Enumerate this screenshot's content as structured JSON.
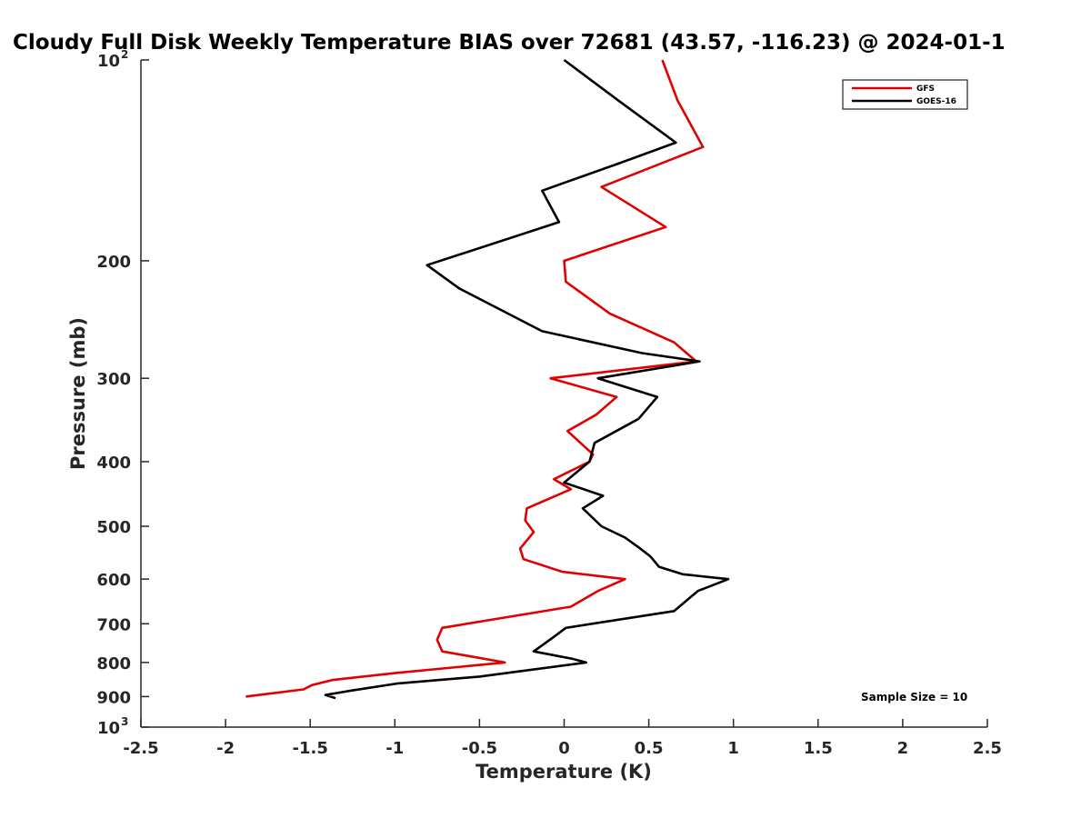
{
  "chart_data": {
    "type": "line",
    "title": "Cloudy Full Disk Weekly Temperature BIAS over 72681 (43.57, -116.23) @ 2024-01-1",
    "xlabel": "Temperature (K)",
    "ylabel": "Pressure (mb)",
    "xlim": [
      -2.5,
      2.5
    ],
    "ylim": [
      100,
      1000
    ],
    "y_scale": "log",
    "y_reversed": true,
    "grid": false,
    "legend_position": "top-right",
    "x_ticks": [
      "-2.5",
      "-2",
      "-1.5",
      "-1",
      "-0.5",
      "0",
      "0.5",
      "1",
      "1.5",
      "2",
      "2.5"
    ],
    "y_ticks": [
      {
        "value": 100,
        "base": "10",
        "exp": "2"
      },
      {
        "value": 200,
        "label": "200"
      },
      {
        "value": 300,
        "label": "300"
      },
      {
        "value": 400,
        "label": "400"
      },
      {
        "value": 500,
        "label": "500"
      },
      {
        "value": 600,
        "label": "600"
      },
      {
        "value": 700,
        "label": "700"
      },
      {
        "value": 800,
        "label": "800"
      },
      {
        "value": 900,
        "label": "900"
      },
      {
        "value": 1000,
        "base": "10",
        "exp": "3"
      }
    ],
    "annotation": "Sample Size = 10",
    "series": [
      {
        "name": "GFS",
        "color": "#e00000",
        "points": [
          [
            0.58,
            100
          ],
          [
            0.67,
            115
          ],
          [
            0.82,
            135
          ],
          [
            0.22,
            155
          ],
          [
            0.6,
            178
          ],
          [
            0.0,
            200
          ],
          [
            0.01,
            215
          ],
          [
            0.27,
            240
          ],
          [
            0.65,
            265
          ],
          [
            0.78,
            283
          ],
          [
            -0.08,
            300
          ],
          [
            0.31,
            320
          ],
          [
            0.19,
            340
          ],
          [
            0.02,
            360
          ],
          [
            0.17,
            390
          ],
          [
            0.15,
            400
          ],
          [
            -0.06,
            425
          ],
          [
            0.04,
            440
          ],
          [
            -0.22,
            470
          ],
          [
            -0.23,
            490
          ],
          [
            -0.18,
            510
          ],
          [
            -0.26,
            540
          ],
          [
            -0.24,
            560
          ],
          [
            -0.01,
            585
          ],
          [
            0.36,
            600
          ],
          [
            0.2,
            625
          ],
          [
            0.04,
            660
          ],
          [
            -0.72,
            710
          ],
          [
            -0.75,
            740
          ],
          [
            -0.72,
            770
          ],
          [
            -0.47,
            790
          ],
          [
            -0.35,
            800
          ],
          [
            -1.0,
            830
          ],
          [
            -1.37,
            850
          ],
          [
            -1.49,
            865
          ],
          [
            -1.54,
            878
          ],
          [
            -1.88,
            900
          ]
        ]
      },
      {
        "name": "GOES-16",
        "color": "#000000",
        "points": [
          [
            0.0,
            100
          ],
          [
            0.32,
            115
          ],
          [
            0.66,
            133
          ],
          [
            0.32,
            143
          ],
          [
            -0.13,
            157
          ],
          [
            -0.03,
            175
          ],
          [
            -0.81,
            203
          ],
          [
            -0.62,
            220
          ],
          [
            -0.13,
            255
          ],
          [
            0.46,
            275
          ],
          [
            0.8,
            283
          ],
          [
            0.2,
            300
          ],
          [
            0.55,
            320
          ],
          [
            0.44,
            345
          ],
          [
            0.18,
            375
          ],
          [
            0.15,
            400
          ],
          [
            0.0,
            430
          ],
          [
            0.23,
            450
          ],
          [
            0.11,
            470
          ],
          [
            0.22,
            500
          ],
          [
            0.36,
            520
          ],
          [
            0.45,
            540
          ],
          [
            0.51,
            555
          ],
          [
            0.56,
            575
          ],
          [
            0.7,
            590
          ],
          [
            0.97,
            600
          ],
          [
            0.79,
            625
          ],
          [
            0.65,
            670
          ],
          [
            0.01,
            710
          ],
          [
            -0.07,
            735
          ],
          [
            -0.18,
            770
          ],
          [
            0.05,
            790
          ],
          [
            0.13,
            800
          ],
          [
            -0.5,
            840
          ],
          [
            -0.98,
            860
          ],
          [
            -1.24,
            880
          ],
          [
            -1.41,
            895
          ],
          [
            -1.35,
            905
          ]
        ]
      }
    ]
  }
}
